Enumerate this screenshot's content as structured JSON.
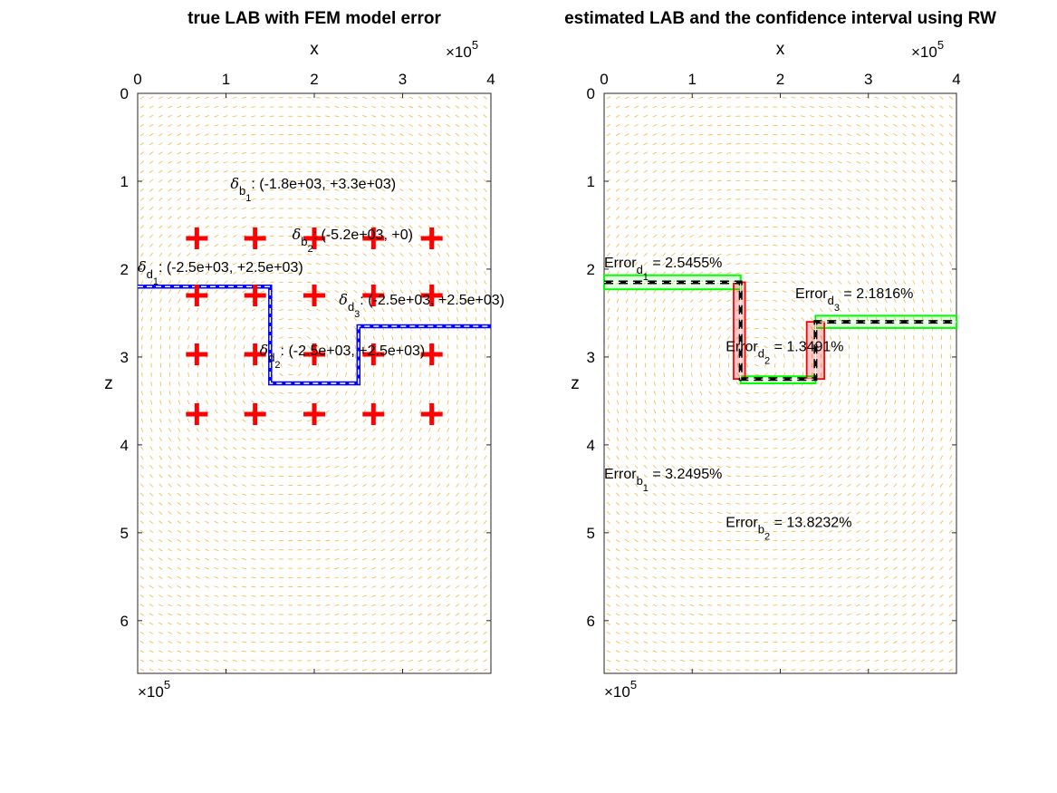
{
  "chart_data": [
    {
      "type": "quiver",
      "title": "true LAB with FEM model error",
      "xlabel": "x",
      "ylabel": "z",
      "x_multiplier": "×10^5",
      "y_multiplier": "×10^5",
      "xlim": [
        0,
        4
      ],
      "ylim": [
        0,
        6.6
      ],
      "y_reversed": true,
      "x_ticks": [
        "0",
        "1",
        "2",
        "3",
        "4"
      ],
      "y_ticks": [
        "0",
        "1",
        "2",
        "3",
        "4",
        "5",
        "6"
      ],
      "x_axis_location": "top",
      "field_color": "#edb120",
      "boundary_true": {
        "color": "#0000ff",
        "x": [
          0,
          1.5,
          1.5,
          2.5,
          2.5,
          4
        ],
        "z": [
          2.2,
          2.2,
          3.3,
          3.3,
          2.65,
          2.65
        ]
      },
      "boundary_estimate": {
        "color": "#000000",
        "x": [
          0,
          1.5,
          1.5,
          2.5,
          2.5,
          4
        ],
        "z": [
          2.2,
          2.2,
          3.3,
          3.3,
          2.65,
          2.65
        ]
      },
      "markers": {
        "symbol": "+",
        "color": "#ff0000",
        "x": [
          0.67,
          1.33,
          2.0,
          2.67,
          3.33
        ],
        "z": [
          1.65,
          2.3,
          2.97,
          3.65
        ]
      },
      "annotations": [
        {
          "sym": "δ",
          "sub1": "b",
          "sub2": "1",
          "text": ": (-1.8e+03, +3.3e+03)",
          "x": 1.05,
          "z": 1.0
        },
        {
          "sym": "δ",
          "sub1": "b",
          "sub2": "2",
          "text": ": (-5.2e+03, +0)",
          "x": 1.75,
          "z": 1.58
        },
        {
          "sym": "δ",
          "sub1": "d",
          "sub2": "1",
          "text": ": (-2.5e+03, +2.5e+03)",
          "x": 0.0,
          "z": 1.95
        },
        {
          "sym": "δ",
          "sub1": "d",
          "sub2": "3",
          "text": ": (-2.5e+03, +2.5e+03)",
          "x": 2.28,
          "z": 2.32
        },
        {
          "sym": "δ",
          "sub1": "d",
          "sub2": "2",
          "text": ": (-2.5e+03, +2.5e+03)",
          "x": 1.38,
          "z": 2.9
        }
      ]
    },
    {
      "type": "quiver",
      "title": "estimated LAB and the confidence interval using RW",
      "xlabel": "x",
      "ylabel": "z",
      "x_multiplier": "×10^5",
      "y_multiplier": "×10^5",
      "xlim": [
        0,
        4
      ],
      "ylim": [
        0,
        6.6
      ],
      "y_reversed": true,
      "x_ticks": [
        "0",
        "1",
        "2",
        "3",
        "4"
      ],
      "y_ticks": [
        "0",
        "1",
        "2",
        "3",
        "4",
        "5",
        "6"
      ],
      "x_axis_location": "top",
      "field_color": "#edb120",
      "boundary_estimate": {
        "color": "#000000",
        "x": [
          0,
          1.55,
          1.55,
          2.4,
          2.4,
          4
        ],
        "z": [
          2.15,
          2.15,
          3.25,
          3.25,
          2.6,
          2.6
        ]
      },
      "depth_intervals": {
        "color": "#00ff00",
        "segments": [
          {
            "x": [
              0,
              1.55
            ],
            "z": [
              2.07,
              2.23
            ]
          },
          {
            "x": [
              1.55,
              2.4
            ],
            "z": [
              3.22,
              3.3
            ]
          },
          {
            "x": [
              2.4,
              4
            ],
            "z": [
              2.53,
              2.67
            ]
          }
        ]
      },
      "boundary_intervals": {
        "color": "#ff0000",
        "segments": [
          {
            "x": [
              1.47,
              1.6
            ],
            "z": [
              2.15,
              3.25
            ]
          },
          {
            "x": [
              2.3,
              2.5
            ],
            "z": [
              2.6,
              3.25
            ]
          }
        ]
      },
      "annotations": [
        {
          "sym": "Error",
          "sub1": "d",
          "sub2": "1",
          "text": " = 2.5455%",
          "x": 0.0,
          "z": 1.9
        },
        {
          "sym": "Error",
          "sub1": "d",
          "sub2": "3",
          "text": " = 2.1816%",
          "x": 2.17,
          "z": 2.25
        },
        {
          "sym": "Error",
          "sub1": "d",
          "sub2": "2",
          "text": " = 1.3491%",
          "x": 1.38,
          "z": 2.85
        },
        {
          "sym": "Error",
          "sub1": "b",
          "sub2": "1",
          "text": " = 3.2495%",
          "x": 0.0,
          "z": 4.3
        },
        {
          "sym": "Error",
          "sub1": "b",
          "sub2": "2",
          "text": " = 13.8232%",
          "x": 1.38,
          "z": 4.85
        }
      ]
    }
  ]
}
